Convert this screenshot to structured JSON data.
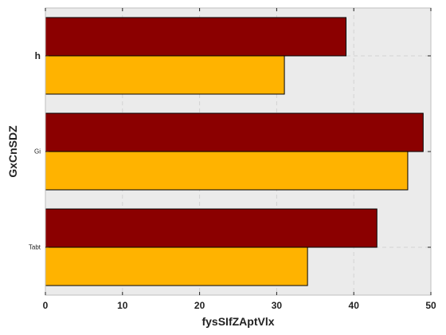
{
  "chart_data": {
    "type": "bar",
    "orientation": "horizontal",
    "title": "",
    "xlabel": "fysSIfZAptVlx",
    "ylabel": "GxCnSDZ",
    "xlim": [
      0,
      50
    ],
    "xticks": [
      0,
      10,
      20,
      30,
      40,
      50
    ],
    "grid": true,
    "legend": "none",
    "categories": [
      "h",
      "Gi",
      "Tabt"
    ],
    "series": [
      {
        "values": [
          39,
          49,
          43
        ],
        "color": "#8b0000"
      },
      {
        "values": [
          31,
          47,
          34
        ],
        "color": "#ffb300"
      }
    ]
  },
  "colors": {
    "plot_background": "#ebebeb",
    "grid": "#d3d3d3",
    "frame": "#bfbfbf"
  }
}
